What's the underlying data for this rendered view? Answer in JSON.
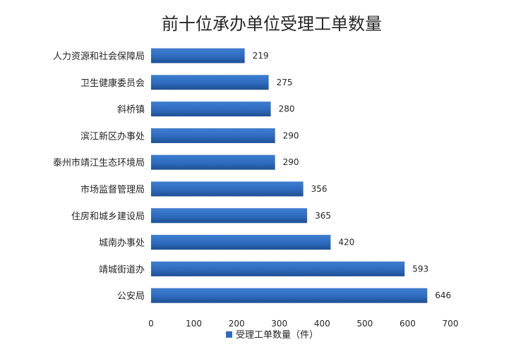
{
  "chart_data": {
    "type": "bar",
    "orientation": "horizontal",
    "title": "前十位承办单位受理工单数量",
    "categories": [
      "人力资源和社会保障局",
      "卫生健康委员会",
      "斜桥镇",
      "滨江新区办事处",
      "泰州市靖江生态环境局",
      "市场监督管理局",
      "住房和城乡建设局",
      "城南办事处",
      "靖城街道办",
      "公安局"
    ],
    "series": [
      {
        "name": "受理工单数量（件）",
        "values": [
          219,
          275,
          280,
          290,
          290,
          356,
          365,
          420,
          593,
          646
        ],
        "color": "#2E6BBF"
      }
    ],
    "xlim": [
      0,
      700
    ],
    "xticks": [
      0,
      100,
      200,
      300,
      400,
      500,
      600,
      700
    ],
    "xlabel": "",
    "ylabel": "",
    "grid": false,
    "data_labels": true,
    "legend_position": "bottom"
  }
}
